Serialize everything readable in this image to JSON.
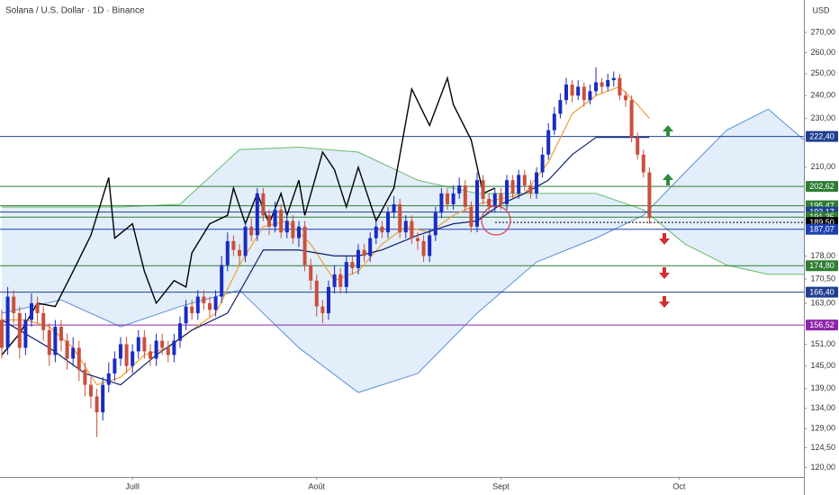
{
  "chart_data": {
    "type": "candlestick",
    "title": "Solana / U.S. Dollar · 1D · Binance",
    "y_axis_label": "USD",
    "log_scale": true,
    "grid": false,
    "up_color": "#1a2bc2",
    "down_color": "#c9503d",
    "xlim": [
      -0.3,
      135
    ],
    "ylim": [
      117.9,
      286.8
    ],
    "xticks": [
      {
        "value": 22,
        "label": "Juill"
      },
      {
        "value": 53,
        "label": "Août"
      },
      {
        "value": 84,
        "label": "Sept"
      },
      {
        "value": 114,
        "label": "Oct"
      }
    ],
    "yticks": [
      {
        "value": 270,
        "label": "270,00"
      },
      {
        "value": 260,
        "label": "260,00"
      },
      {
        "value": 250,
        "label": "250,00"
      },
      {
        "value": 240,
        "label": "240,00"
      },
      {
        "value": 230,
        "label": "230,00"
      },
      {
        "value": 210,
        "label": "210,00"
      },
      {
        "value": 178,
        "label": "178,00"
      },
      {
        "value": 170.5,
        "label": "170,50"
      },
      {
        "value": 163,
        "label": "163,00"
      },
      {
        "value": 151,
        "label": "151,00"
      },
      {
        "value": 145,
        "label": "145,00"
      },
      {
        "value": 139,
        "label": "139,00"
      },
      {
        "value": 134,
        "label": "134,00"
      },
      {
        "value": 129,
        "label": "129,00"
      },
      {
        "value": 124.5,
        "label": "124,50"
      },
      {
        "value": 120,
        "label": "120,00"
      }
    ],
    "candles": {
      "x": [
        0,
        1,
        2,
        3,
        4,
        5,
        6,
        7,
        8,
        9,
        10,
        11,
        12,
        13,
        14,
        15,
        16,
        17,
        18,
        19,
        20,
        21,
        22,
        23,
        24,
        25,
        26,
        27,
        28,
        29,
        30,
        31,
        32,
        33,
        34,
        35,
        36,
        37,
        38,
        39,
        40,
        41,
        42,
        43,
        44,
        45,
        46,
        47,
        48,
        49,
        50,
        51,
        52,
        53,
        54,
        55,
        56,
        57,
        58,
        59,
        60,
        61,
        62,
        63,
        64,
        65,
        66,
        67,
        68,
        69,
        70,
        71,
        72,
        73,
        74,
        75,
        76,
        77,
        78,
        79,
        80,
        81,
        82,
        83,
        84,
        85,
        86,
        87,
        88,
        89,
        90,
        91,
        92,
        93,
        94,
        95,
        96,
        97,
        98,
        99,
        100,
        101,
        102,
        103,
        104,
        105,
        106,
        107,
        108,
        109
      ],
      "open": [
        158,
        150,
        165,
        160,
        150,
        158,
        163,
        160,
        155,
        148,
        156,
        152,
        147,
        150,
        144,
        140,
        137,
        133,
        140,
        143,
        147,
        151,
        145,
        149,
        153,
        149,
        147,
        152,
        150,
        148,
        152,
        157,
        162,
        160,
        165,
        163,
        161,
        165,
        175,
        183,
        180,
        178,
        188,
        185,
        200,
        192,
        188,
        194,
        186,
        190,
        184,
        188,
        175,
        170,
        162,
        160,
        168,
        172,
        168,
        176,
        174,
        180,
        178,
        184,
        188,
        186,
        193,
        196,
        186,
        190,
        184,
        183,
        178,
        185,
        193,
        200,
        196,
        200,
        203,
        195,
        188,
        205,
        198,
        195,
        200,
        196,
        205,
        200,
        207,
        203,
        200,
        208,
        215,
        225,
        232,
        238,
        245,
        240,
        244,
        238,
        242,
        246,
        244,
        247,
        248,
        240,
        238,
        222,
        215,
        208
      ],
      "high": [
        161,
        168,
        167,
        162,
        160,
        166,
        165,
        162,
        157,
        158,
        158,
        154,
        153,
        152,
        146,
        142,
        139,
        142,
        146,
        149,
        153,
        153,
        151,
        155,
        155,
        151,
        154,
        154,
        152,
        154,
        159,
        164,
        164,
        167,
        167,
        165,
        167,
        178,
        186,
        185,
        182,
        190,
        191,
        202,
        202,
        194,
        197,
        196,
        193,
        192,
        190,
        190,
        177,
        172,
        164,
        170,
        175,
        174,
        178,
        178,
        182,
        182,
        186,
        190,
        190,
        195,
        199,
        198,
        192,
        192,
        186,
        185,
        187,
        195,
        202,
        202,
        203,
        206,
        205,
        197,
        208,
        207,
        200,
        202,
        202,
        207,
        207,
        209,
        209,
        205,
        210,
        218,
        228,
        235,
        241,
        248,
        247,
        247,
        246,
        245,
        253,
        248,
        250,
        251,
        250,
        242,
        240,
        224,
        217,
        210
      ],
      "low": [
        147,
        148,
        157,
        147,
        148,
        156,
        157,
        152,
        145,
        146,
        149,
        144,
        145,
        141,
        137,
        134,
        127,
        131,
        138,
        141,
        145,
        143,
        143,
        147,
        147,
        145,
        145,
        148,
        146,
        146,
        150,
        155,
        158,
        158,
        161,
        159,
        159,
        163,
        173,
        178,
        175,
        176,
        183,
        183,
        190,
        185,
        186,
        184,
        184,
        182,
        181,
        173,
        167,
        159,
        157,
        158,
        166,
        166,
        166,
        172,
        172,
        176,
        176,
        182,
        184,
        184,
        191,
        184,
        184,
        182,
        180,
        176,
        176,
        183,
        191,
        194,
        194,
        198,
        193,
        186,
        186,
        196,
        193,
        193,
        194,
        194,
        198,
        198,
        201,
        198,
        198,
        206,
        213,
        223,
        230,
        236,
        237,
        238,
        235,
        236,
        240,
        241,
        242,
        244,
        238,
        235,
        220,
        213,
        206,
        189
      ],
      "close": [
        150,
        165,
        160,
        150,
        158,
        163,
        160,
        155,
        148,
        156,
        152,
        147,
        150,
        144,
        140,
        137,
        133,
        140,
        143,
        147,
        151,
        145,
        149,
        153,
        149,
        147,
        152,
        150,
        148,
        152,
        157,
        162,
        160,
        165,
        163,
        161,
        165,
        175,
        183,
        180,
        178,
        188,
        185,
        200,
        192,
        188,
        194,
        186,
        190,
        184,
        188,
        175,
        170,
        162,
        160,
        168,
        172,
        168,
        176,
        174,
        180,
        178,
        184,
        188,
        186,
        193,
        196,
        186,
        190,
        184,
        183,
        178,
        185,
        193,
        200,
        196,
        200,
        203,
        195,
        188,
        205,
        198,
        195,
        200,
        196,
        205,
        200,
        207,
        203,
        200,
        208,
        215,
        225,
        232,
        238,
        245,
        240,
        244,
        238,
        242,
        246,
        244,
        247,
        248,
        240,
        238,
        222,
        215,
        208,
        191
      ]
    },
    "cloud": {
      "fill": "#cfe3f6",
      "x": [
        0,
        10,
        20,
        30,
        40,
        50,
        60,
        70,
        80,
        90,
        100,
        108,
        115,
        122,
        129,
        135
      ],
      "span_a": {
        "color": "#5b8fd6",
        "values": [
          160,
          164,
          156,
          162,
          167,
          150,
          138,
          143,
          160,
          176,
          184,
          192,
          208,
          225,
          234,
          221
        ]
      },
      "span_b": {
        "color": "#66bb6a",
        "values": [
          195,
          195,
          195,
          196,
          217,
          218,
          216,
          205,
          200,
          200,
          200,
          194,
          182,
          175,
          172,
          172
        ]
      }
    },
    "series": [
      {
        "color": "#000000",
        "x": [
          0,
          3,
          6,
          9,
          12,
          15,
          18,
          19,
          22,
          24,
          26,
          29,
          31,
          32,
          35,
          38,
          39,
          41,
          43,
          45,
          47,
          48,
          50,
          51,
          54,
          56,
          58,
          60,
          63,
          66,
          69,
          72,
          75,
          76,
          79,
          81,
          83
        ],
        "values": [
          148,
          154,
          163,
          162,
          173,
          185,
          206,
          184,
          189,
          173,
          163,
          170,
          168,
          179,
          189,
          192,
          202,
          189,
          200,
          189,
          200,
          192,
          205,
          192,
          216,
          209,
          195,
          210,
          190,
          202,
          243,
          227,
          248,
          236,
          221,
          200,
          202
        ]
      },
      {
        "color": "#f0a030",
        "x": [
          0,
          4,
          8,
          12,
          16,
          20,
          24,
          28,
          32,
          36,
          40,
          44,
          48,
          52,
          56,
          60,
          64,
          68,
          72,
          76,
          80,
          84,
          88,
          92,
          96,
          100,
          104,
          107,
          109
        ],
        "values": [
          158,
          158,
          156,
          150,
          140,
          142,
          148,
          150,
          155,
          160,
          175,
          188,
          190,
          182,
          170,
          173,
          182,
          188,
          186,
          192,
          196,
          198,
          200,
          212,
          232,
          240,
          244,
          236,
          230
        ]
      },
      {
        "color": "#0d1f6e",
        "x": [
          0,
          8,
          14,
          20,
          26,
          32,
          38,
          44,
          50,
          56,
          60,
          64,
          70,
          76,
          80,
          84,
          88,
          92,
          96,
          100,
          104,
          109
        ],
        "values": [
          158,
          150,
          143,
          140,
          148,
          155,
          160,
          180,
          180,
          178,
          178,
          180,
          185,
          189,
          190,
          196,
          200,
          205,
          215,
          222,
          222,
          222
        ]
      }
    ],
    "levels": [
      {
        "value": 222.4,
        "label": "222,40",
        "color": "#1f3f8f"
      },
      {
        "value": 202.62,
        "label": "202,62",
        "color": "#2e7d32"
      },
      {
        "value": 195.47,
        "label": "195,47",
        "color": "#2e7d32"
      },
      {
        "value": 193.17,
        "label": "193,17",
        "color": "#1f3f8f"
      },
      {
        "value": 191.35,
        "label": "191,35",
        "color": "#2e7d32"
      },
      {
        "value": 189.5,
        "label": "189,50",
        "color": "#000000",
        "dotted": true
      },
      {
        "value": 187.07,
        "label": "187,07",
        "color": "#1e40af"
      },
      {
        "value": 174.8,
        "label": "174,80",
        "color": "#2e7d32"
      },
      {
        "value": 166.4,
        "label": "166,40",
        "color": "#1f3f8f"
      },
      {
        "value": 156.52,
        "label": "156,52",
        "color": "#8e24aa"
      }
    ]
  }
}
